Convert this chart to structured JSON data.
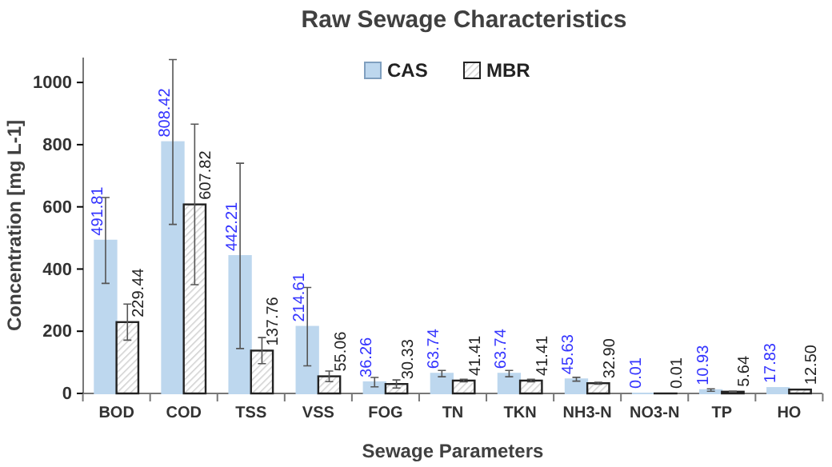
{
  "chart_data": {
    "type": "bar",
    "title": "Raw Sewage Characteristics",
    "xlabel": "Sewage Parameters",
    "ylabel": "Concentration [mg L-1]",
    "categories": [
      "BOD",
      "COD",
      "TSS",
      "VSS",
      "FOG",
      "TN",
      "TKN",
      "NH3-N",
      "NO3-N",
      "TP",
      "HO"
    ],
    "series": [
      {
        "name": "CAS",
        "color": "#bdd7ee",
        "values": [
          491.81,
          808.42,
          442.21,
          214.61,
          36.26,
          63.74,
          63.74,
          45.63,
          0.01,
          10.93,
          17.83
        ],
        "value_labels": [
          "491.81",
          "808.42",
          "442.21",
          "214.61",
          "36.26",
          "63.74",
          "63.74",
          "45.63",
          "0.01",
          "10.93",
          "17.83"
        ],
        "errors": [
          138,
          265,
          298,
          126,
          15,
          10,
          10,
          6,
          null,
          4,
          null
        ]
      },
      {
        "name": "MBR",
        "color": "#222222",
        "values": [
          229.44,
          607.82,
          137.76,
          55.06,
          30.33,
          41.41,
          41.41,
          32.9,
          0.01,
          5.64,
          12.5
        ],
        "value_labels": [
          "229.44",
          "607.82",
          "137.76",
          "55.06",
          "30.33",
          "41.41",
          "41.41",
          "32.90",
          "0.01",
          "5.64",
          "12.50"
        ],
        "errors": [
          58,
          258,
          42,
          17,
          13,
          4,
          4,
          3,
          null,
          1,
          null
        ]
      }
    ],
    "ylim": [
      0,
      1080
    ],
    "yticks": [
      0,
      200,
      400,
      600,
      800,
      1000
    ],
    "grid": false,
    "legend": "top"
  }
}
